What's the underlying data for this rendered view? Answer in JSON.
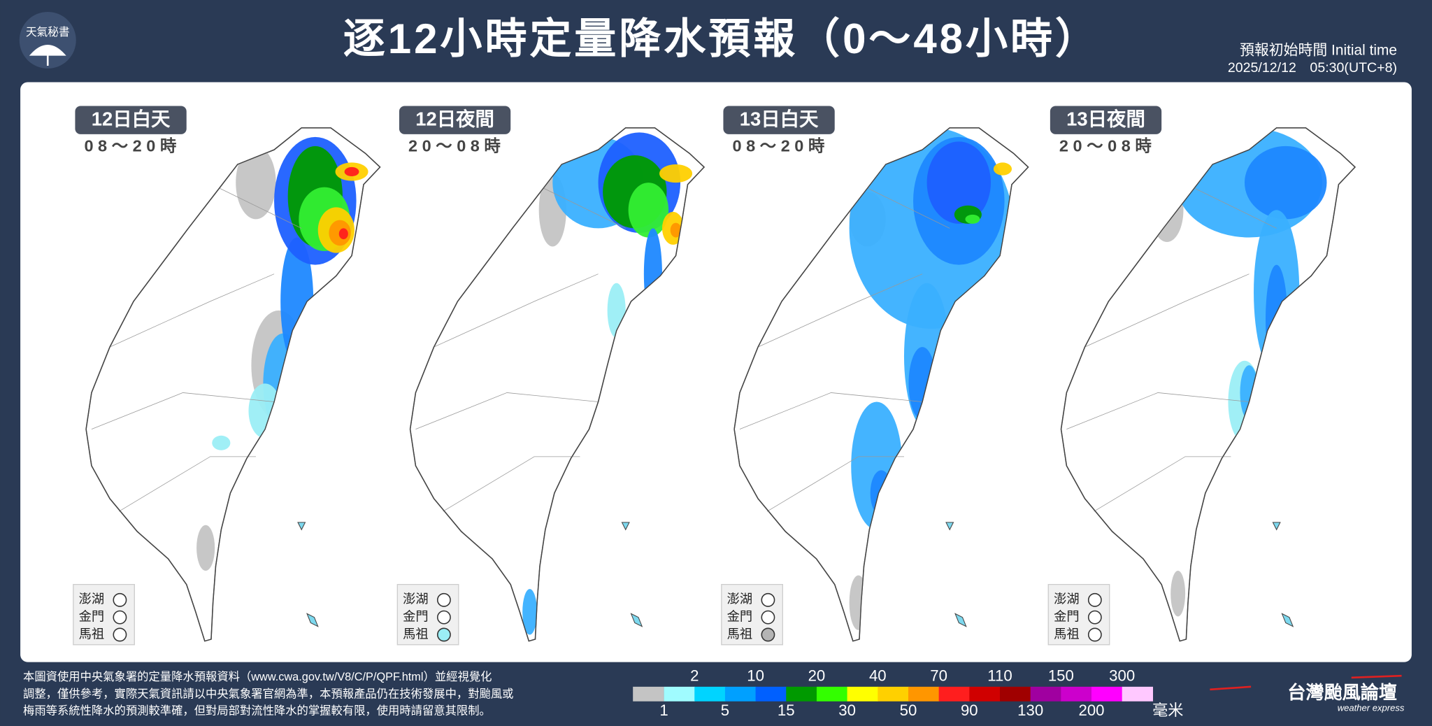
{
  "header": {
    "logo": "天氣秘書",
    "title": "逐12小時定量降水預報（0～48小時）",
    "initial_time_label": "預報初始時間 Initial time",
    "initial_time": "2025/12/12　05:30(UTC+8)"
  },
  "panels": [
    {
      "day": "12日白天",
      "hours": "08～20時",
      "islands": [
        {
          "name": "澎湖",
          "color": "#ffffff"
        },
        {
          "name": "金門",
          "color": "#ffffff"
        },
        {
          "name": "馬祖",
          "color": "#ffffff"
        }
      ]
    },
    {
      "day": "12日夜間",
      "hours": "20～08時",
      "islands": [
        {
          "name": "澎湖",
          "color": "#ffffff"
        },
        {
          "name": "金門",
          "color": "#ffffff"
        },
        {
          "name": "馬祖",
          "color": "#9beef5"
        }
      ]
    },
    {
      "day": "13日白天",
      "hours": "08～20時",
      "islands": [
        {
          "name": "澎湖",
          "color": "#ffffff"
        },
        {
          "name": "金門",
          "color": "#ffffff"
        },
        {
          "name": "馬祖",
          "color": "#b4b4b4"
        }
      ]
    },
    {
      "day": "13日夜間",
      "hours": "20～08時",
      "islands": [
        {
          "name": "澎湖",
          "color": "#ffffff"
        },
        {
          "name": "金門",
          "color": "#ffffff"
        },
        {
          "name": "馬祖",
          "color": "#ffffff"
        }
      ]
    }
  ],
  "legend": {
    "unit": "毫米",
    "under_color": "#c4c4c4",
    "thresholds": [
      {
        "value": 1,
        "color": "#a0fcff"
      },
      {
        "value": 2,
        "color": "#00d4ff"
      },
      {
        "value": 5,
        "color": "#00a0ff"
      },
      {
        "value": 10,
        "color": "#0060ff"
      },
      {
        "value": 15,
        "color": "#009a00"
      },
      {
        "value": 20,
        "color": "#33ff00"
      },
      {
        "value": 30,
        "color": "#ffff00"
      },
      {
        "value": 40,
        "color": "#ffd000"
      },
      {
        "value": 50,
        "color": "#ff9600"
      },
      {
        "value": 70,
        "color": "#ff1e1e"
      },
      {
        "value": 90,
        "color": "#d00000"
      },
      {
        "value": 110,
        "color": "#a00000"
      },
      {
        "value": 130,
        "color": "#a000a0"
      },
      {
        "value": 150,
        "color": "#cc00cc"
      },
      {
        "value": 200,
        "color": "#ff00ff"
      },
      {
        "value": 300,
        "color": "#ffc8ff"
      }
    ]
  },
  "footer": {
    "lines": [
      "本圖資使用中央氣象署的定量降水預報資料（www.cwa.gov.tw/V8/C/P/QPF.html）並經視覺化",
      "調整，僅供參考，實際天氣資訊請以中央氣象署官網為準，本預報產品仍在技術發展中，對颱風或",
      "梅雨等系統性降水的預測較準確，但對局部對流性降水的掌握較有限，使用時請留意其限制。"
    ],
    "brand": "台灣颱風論壇",
    "brand_sub": "weather express"
  }
}
